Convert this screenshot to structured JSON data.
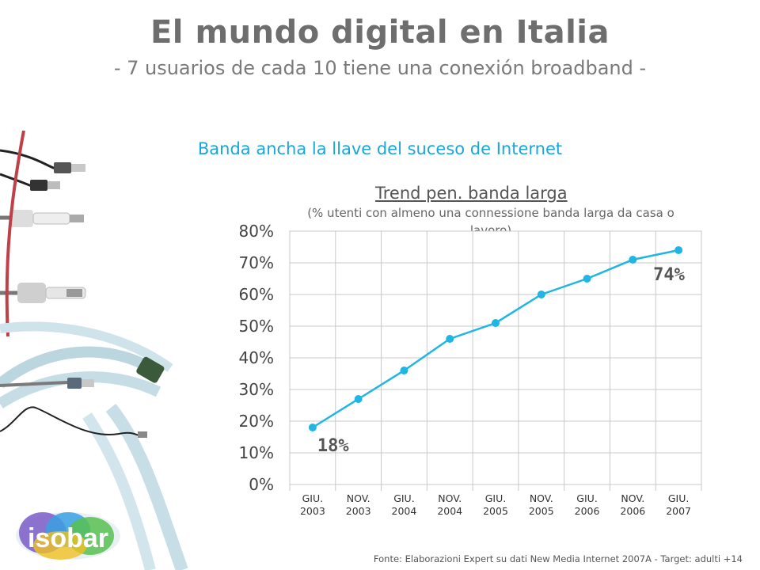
{
  "header": {
    "title": "El mundo digital en Italia",
    "subtitle": "- 7 usuarios de cada 10 tiene una conexión  broadband -"
  },
  "section_heading": "Banda ancha la llave del suceso de  Internet",
  "chart_data": {
    "type": "line",
    "title": "Trend pen. banda larga",
    "subtitle": "(% utenti con almeno una connessione banda larga da casa o lavoro)",
    "categories": [
      [
        "GIU.",
        "2003"
      ],
      [
        "NOV.",
        "2003"
      ],
      [
        "GIU.",
        "2004"
      ],
      [
        "NOV.",
        "2004"
      ],
      [
        "GIU.",
        "2005"
      ],
      [
        "NOV.",
        "2005"
      ],
      [
        "GIU.",
        "2006"
      ],
      [
        "NOV.",
        "2006"
      ],
      [
        "GIU.",
        "2007"
      ]
    ],
    "values": [
      18,
      27,
      36,
      46,
      51,
      60,
      65,
      71,
      74
    ],
    "ylim": [
      0,
      80
    ],
    "yticks": [
      "0%",
      "10%",
      "20%",
      "30%",
      "40%",
      "50%",
      "60%",
      "70%",
      "80%"
    ],
    "annotations": {
      "first": "18%",
      "last": "74%"
    },
    "grid": true,
    "line_color": "#1fb6e6"
  },
  "footer": {
    "source": "Fonte: Elaborazioni Expert su dati New Media Internet 2007A - Target: adulti +14"
  },
  "logo": {
    "text": "isobar"
  },
  "decor": {
    "image": "usb-cables-photo"
  }
}
